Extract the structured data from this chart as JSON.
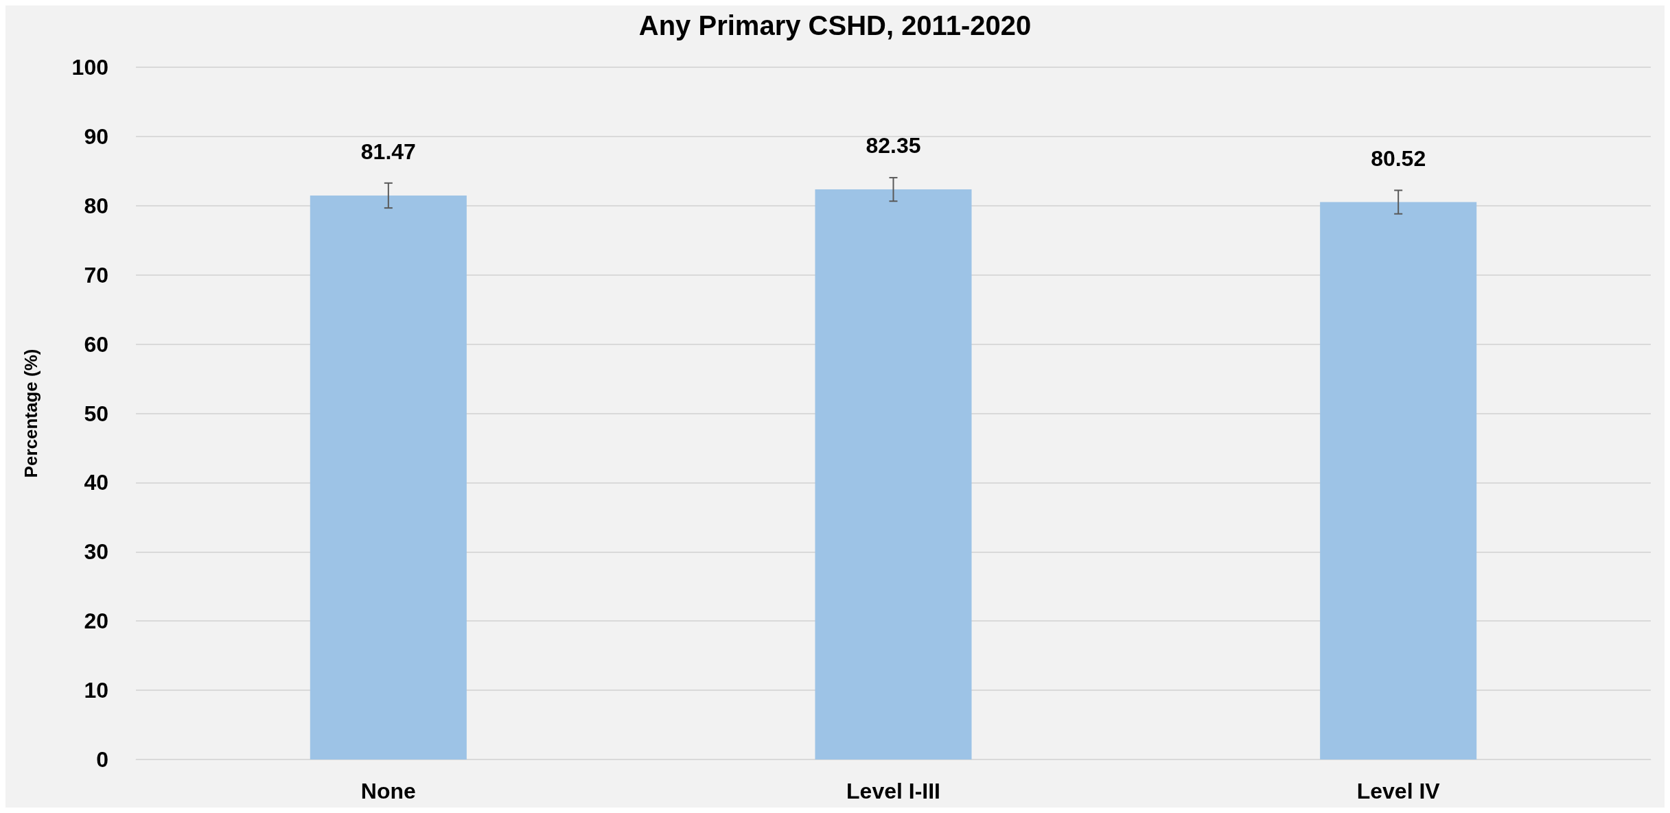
{
  "chart_data": {
    "type": "bar",
    "title": "Any Primary CSHD, 2011-2020",
    "ylabel": "Percentage (%)",
    "categories": [
      "None",
      "Level I-III",
      "Level IV"
    ],
    "values": [
      81.47,
      82.35,
      80.52
    ],
    "color": "#9dc3e6",
    "errors": [
      1.8,
      1.7,
      1.7
    ],
    "ylim": [
      0,
      100
    ],
    "yticks": [
      0,
      10,
      20,
      30,
      40,
      50,
      60,
      70,
      80,
      90,
      100
    ],
    "grid": "y",
    "data_labels": true
  }
}
